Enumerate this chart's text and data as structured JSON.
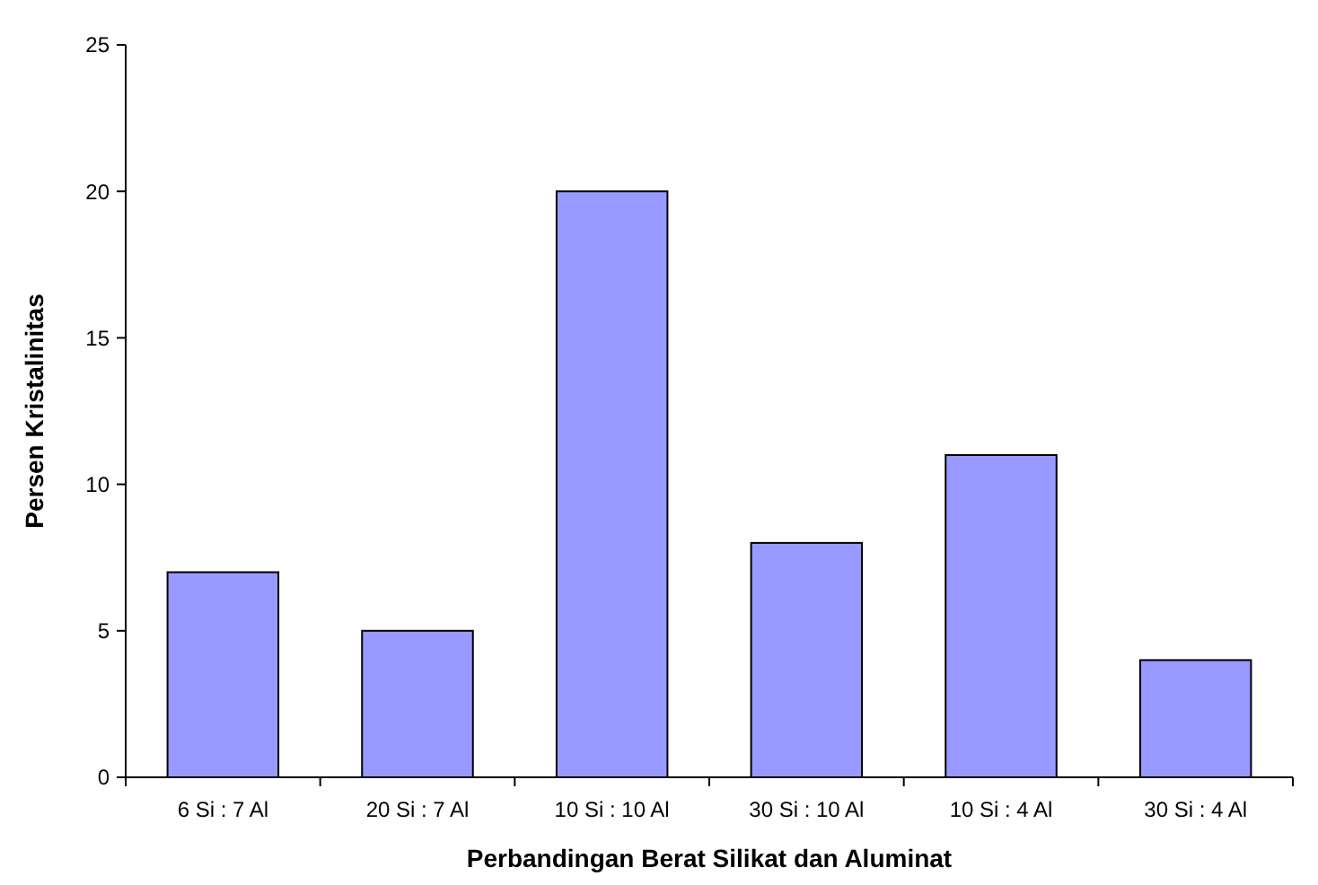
{
  "chart_data": {
    "type": "bar",
    "xlabel": "Perbandingan Berat Silikat dan Aluminat",
    "ylabel": "Persen Kristalinitas",
    "categories": [
      "6 Si : 7 Al",
      "20 Si : 7 Al",
      "10 Si : 10 Al",
      "30 Si : 10 Al",
      "10 Si : 4 Al",
      "30 Si : 4 Al"
    ],
    "values": [
      7,
      5,
      20,
      8,
      11,
      4
    ],
    "color": "#9999ff",
    "ylim": [
      0,
      25
    ],
    "yticks": [
      0,
      5,
      10,
      15,
      20,
      25
    ],
    "grid": false
  }
}
